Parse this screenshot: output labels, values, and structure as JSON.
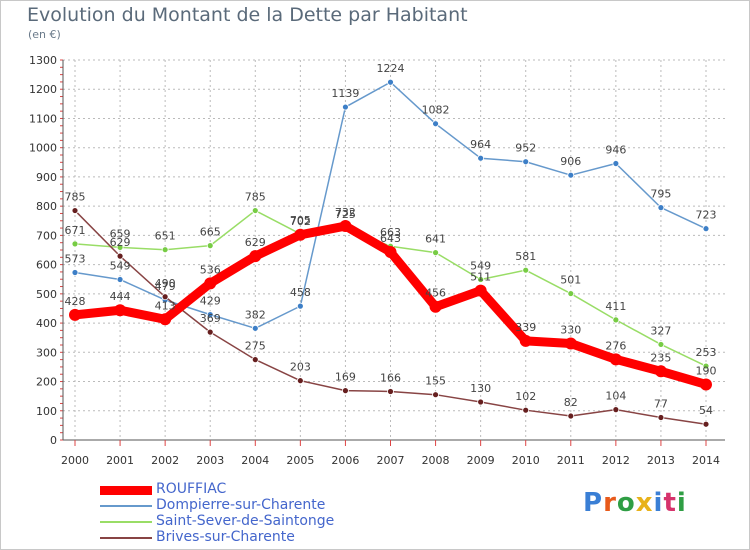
{
  "header": {
    "title": "Evolution du Montant de la Dette par Habitant",
    "subtitle": "(en €)"
  },
  "logo": {
    "text": "Proxiti",
    "colors": [
      "#3a7fd5",
      "#e85a1b",
      "#2f9e44",
      "#e8b21b",
      "#3a7fd5",
      "#d6336c",
      "#2f9e44"
    ]
  },
  "chart_data": {
    "type": "line",
    "title": "Evolution du Montant de la Dette par Habitant",
    "ylabel": "(en €)",
    "xlabel": "",
    "ylim": [
      0,
      1300
    ],
    "yticks": [
      0,
      100,
      200,
      300,
      400,
      500,
      600,
      700,
      800,
      900,
      1000,
      1100,
      1200,
      1300
    ],
    "x": [
      "2000",
      "2001",
      "2002",
      "2003",
      "2004",
      "2005",
      "2006",
      "2007",
      "2008",
      "2009",
      "2010",
      "2011",
      "2012",
      "2013",
      "2014"
    ],
    "grid": true,
    "legend_position": "bottom-left",
    "series": [
      {
        "name": "Dompierre-sur-Charente",
        "color": "#6699cc",
        "point_color": "#3d7fc7",
        "values": [
          573,
          549,
          479,
          429,
          382,
          458,
          1139,
          1224,
          1082,
          964,
          952,
          906,
          946,
          795,
          723
        ]
      },
      {
        "name": "Saint-Sever-de-Saintonge",
        "color": "#99dd66",
        "point_color": "#77cc44",
        "values": [
          671,
          659,
          651,
          665,
          785,
          705,
          725,
          663,
          641,
          549,
          581,
          501,
          411,
          327,
          253
        ]
      },
      {
        "name": "Brives-sur-Charente",
        "color": "#884444",
        "point_color": "#661f1f",
        "values": [
          785,
          629,
          490,
          369,
          275,
          203,
          169,
          166,
          155,
          130,
          102,
          82,
          104,
          77,
          54
        ]
      },
      {
        "name": "ROUFFIAC",
        "color": "#ff0000",
        "point_color": "#ff0000",
        "values": [
          428,
          444,
          413,
          536,
          629,
          702,
          732,
          643,
          456,
          511,
          339,
          330,
          276,
          235,
          190
        ]
      }
    ],
    "legend_order": [
      "ROUFFIAC",
      "Dompierre-sur-Charente",
      "Saint-Sever-de-Saintonge",
      "Brives-sur-Charente"
    ]
  }
}
